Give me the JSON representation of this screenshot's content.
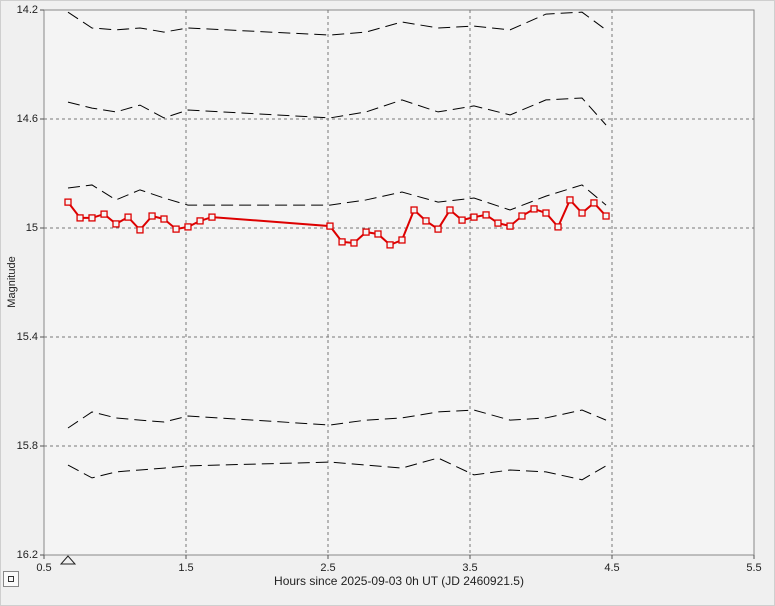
{
  "chart_data": {
    "type": "line",
    "ylabel": "Magnitude",
    "xlabel": "Hours since 2025-09-03 0h UT (JD 2460921.5)",
    "xlim": [
      0.5,
      5.5
    ],
    "xticks": [
      0.5,
      1.5,
      2.5,
      3.5,
      4.5,
      5.5
    ],
    "ylim": [
      16.2,
      14.2
    ],
    "yticks": [
      14.2,
      14.6,
      15,
      15.4,
      15.8,
      16.2
    ],
    "y_inverted": true,
    "grid": true,
    "series": [
      {
        "color": "#000000",
        "dashed": true,
        "x": [
          0.669,
          0.838,
          1.007,
          1.176,
          1.345,
          1.514,
          2.514,
          2.768,
          3.021,
          3.275,
          3.528,
          3.782,
          4.035,
          4.289,
          4.458
        ],
        "values": [
          14.208,
          14.266,
          14.273,
          14.266,
          14.281,
          14.266,
          14.292,
          14.281,
          14.244,
          14.266,
          14.259,
          14.273,
          14.215,
          14.208,
          14.273
        ]
      },
      {
        "color": "#000000",
        "dashed": true,
        "x": [
          0.669,
          0.838,
          1.007,
          1.176,
          1.345,
          1.514,
          2.514,
          2.768,
          3.021,
          3.275,
          3.528,
          3.782,
          4.035,
          4.289,
          4.458
        ],
        "values": [
          14.538,
          14.56,
          14.574,
          14.549,
          14.596,
          14.567,
          14.596,
          14.574,
          14.53,
          14.574,
          14.552,
          14.585,
          14.53,
          14.523,
          14.622
        ]
      },
      {
        "color": "#000000",
        "dashed": true,
        "x": [
          0.669,
          0.838,
          1.007,
          1.176,
          1.345,
          1.514,
          2.514,
          2.768,
          3.021,
          3.275,
          3.528,
          3.782,
          4.035,
          4.289,
          4.458
        ],
        "values": [
          14.853,
          14.842,
          14.897,
          14.86,
          14.89,
          14.916,
          14.916,
          14.897,
          14.868,
          14.905,
          14.89,
          14.934,
          14.883,
          14.842,
          14.916
        ]
      },
      {
        "color": "#000000",
        "dashed": true,
        "x": [
          0.669,
          0.838,
          1.007,
          1.176,
          1.345,
          1.514,
          2.514,
          2.768,
          3.021,
          3.275,
          3.528,
          3.782,
          4.035,
          4.289,
          4.458
        ],
        "values": [
          15.734,
          15.675,
          15.697,
          15.705,
          15.712,
          15.69,
          15.723,
          15.705,
          15.697,
          15.675,
          15.668,
          15.705,
          15.697,
          15.668,
          15.705
        ]
      },
      {
        "color": "#000000",
        "dashed": true,
        "x": [
          0.669,
          0.838,
          1.007,
          1.176,
          1.345,
          1.514,
          2.514,
          2.768,
          3.021,
          3.275,
          3.528,
          3.782,
          4.035,
          4.289,
          4.458
        ],
        "values": [
          15.87,
          15.917,
          15.895,
          15.888,
          15.881,
          15.873,
          15.859,
          15.87,
          15.881,
          15.844,
          15.906,
          15.888,
          15.895,
          15.924,
          15.873
        ]
      },
      {
        "color": "#dd0000",
        "dashed": false,
        "marker": "square",
        "x": [
          0.669,
          0.754,
          0.838,
          0.923,
          1.007,
          1.092,
          1.176,
          1.261,
          1.345,
          1.43,
          1.514,
          1.599,
          1.683,
          2.514,
          2.599,
          2.683,
          2.768,
          2.852,
          2.937,
          3.021,
          3.106,
          3.19,
          3.275,
          3.359,
          3.444,
          3.528,
          3.613,
          3.697,
          3.782,
          3.866,
          3.951,
          4.035,
          4.12,
          4.204,
          4.289,
          4.373,
          4.458
        ],
        "values": [
          14.905,
          14.963,
          14.963,
          14.949,
          14.985,
          14.96,
          15.007,
          14.956,
          14.967,
          15.004,
          14.996,
          14.974,
          14.96,
          14.993,
          15.051,
          15.055,
          15.015,
          15.022,
          15.062,
          15.044,
          14.934,
          14.974,
          15.004,
          14.934,
          14.971,
          14.96,
          14.952,
          14.982,
          14.993,
          14.956,
          14.93,
          14.945,
          14.996,
          14.897,
          14.945,
          14.908,
          14.956
        ]
      }
    ]
  }
}
